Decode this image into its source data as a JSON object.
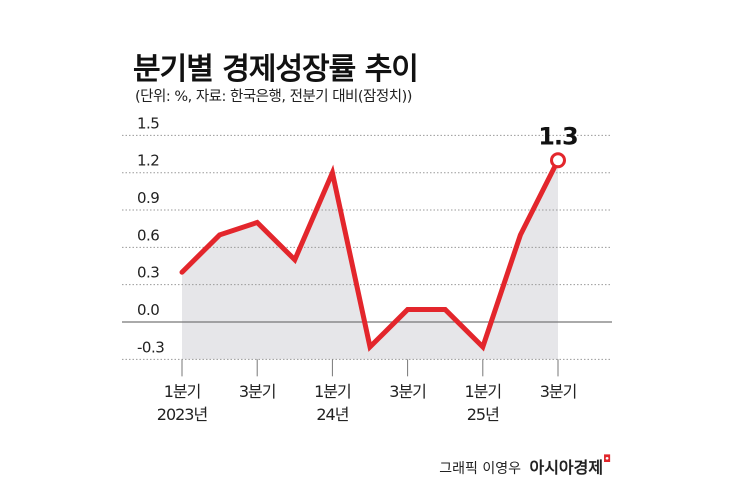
{
  "chart_data": {
    "type": "line",
    "title": "분기별 경제성장률 추이",
    "subtitle": "(단위: %, 자료: 한국은행, 전분기 대비(잠정치))",
    "x": [
      "2023 Q1",
      "2023 Q2",
      "2023 Q3",
      "2023 Q4",
      "2024 Q1",
      "2024 Q2",
      "2024 Q3",
      "2024 Q4",
      "2025 Q1",
      "2025 Q2",
      "2025 Q3"
    ],
    "values": [
      0.4,
      0.7,
      0.8,
      0.5,
      1.2,
      -0.2,
      0.1,
      0.1,
      -0.2,
      0.7,
      1.3
    ],
    "ylim": [
      -0.3,
      1.5
    ],
    "yticks": [
      "1.5",
      "1.2",
      "0.9",
      "0.6",
      "0.3",
      "0.0",
      "-0.3"
    ],
    "xtick_labels": [
      {
        "index": 0,
        "line1": "1분기",
        "line2": "2023년"
      },
      {
        "index": 2,
        "line1": "3분기",
        "line2": ""
      },
      {
        "index": 4,
        "line1": "1분기",
        "line2": "24년"
      },
      {
        "index": 6,
        "line1": "3분기",
        "line2": ""
      },
      {
        "index": 8,
        "line1": "1분기",
        "line2": "25년"
      },
      {
        "index": 10,
        "line1": "3분기",
        "line2": ""
      }
    ],
    "annotation": "1.3",
    "grid": true,
    "colors": {
      "line": "#e3262c",
      "fill": "#e6e6e9",
      "grid": "#9a9a9a",
      "zero": "#777777"
    }
  },
  "credit": {
    "text": "그래픽 이영우",
    "brand": "아시아경제",
    "brand_mark": "ㅁ"
  }
}
